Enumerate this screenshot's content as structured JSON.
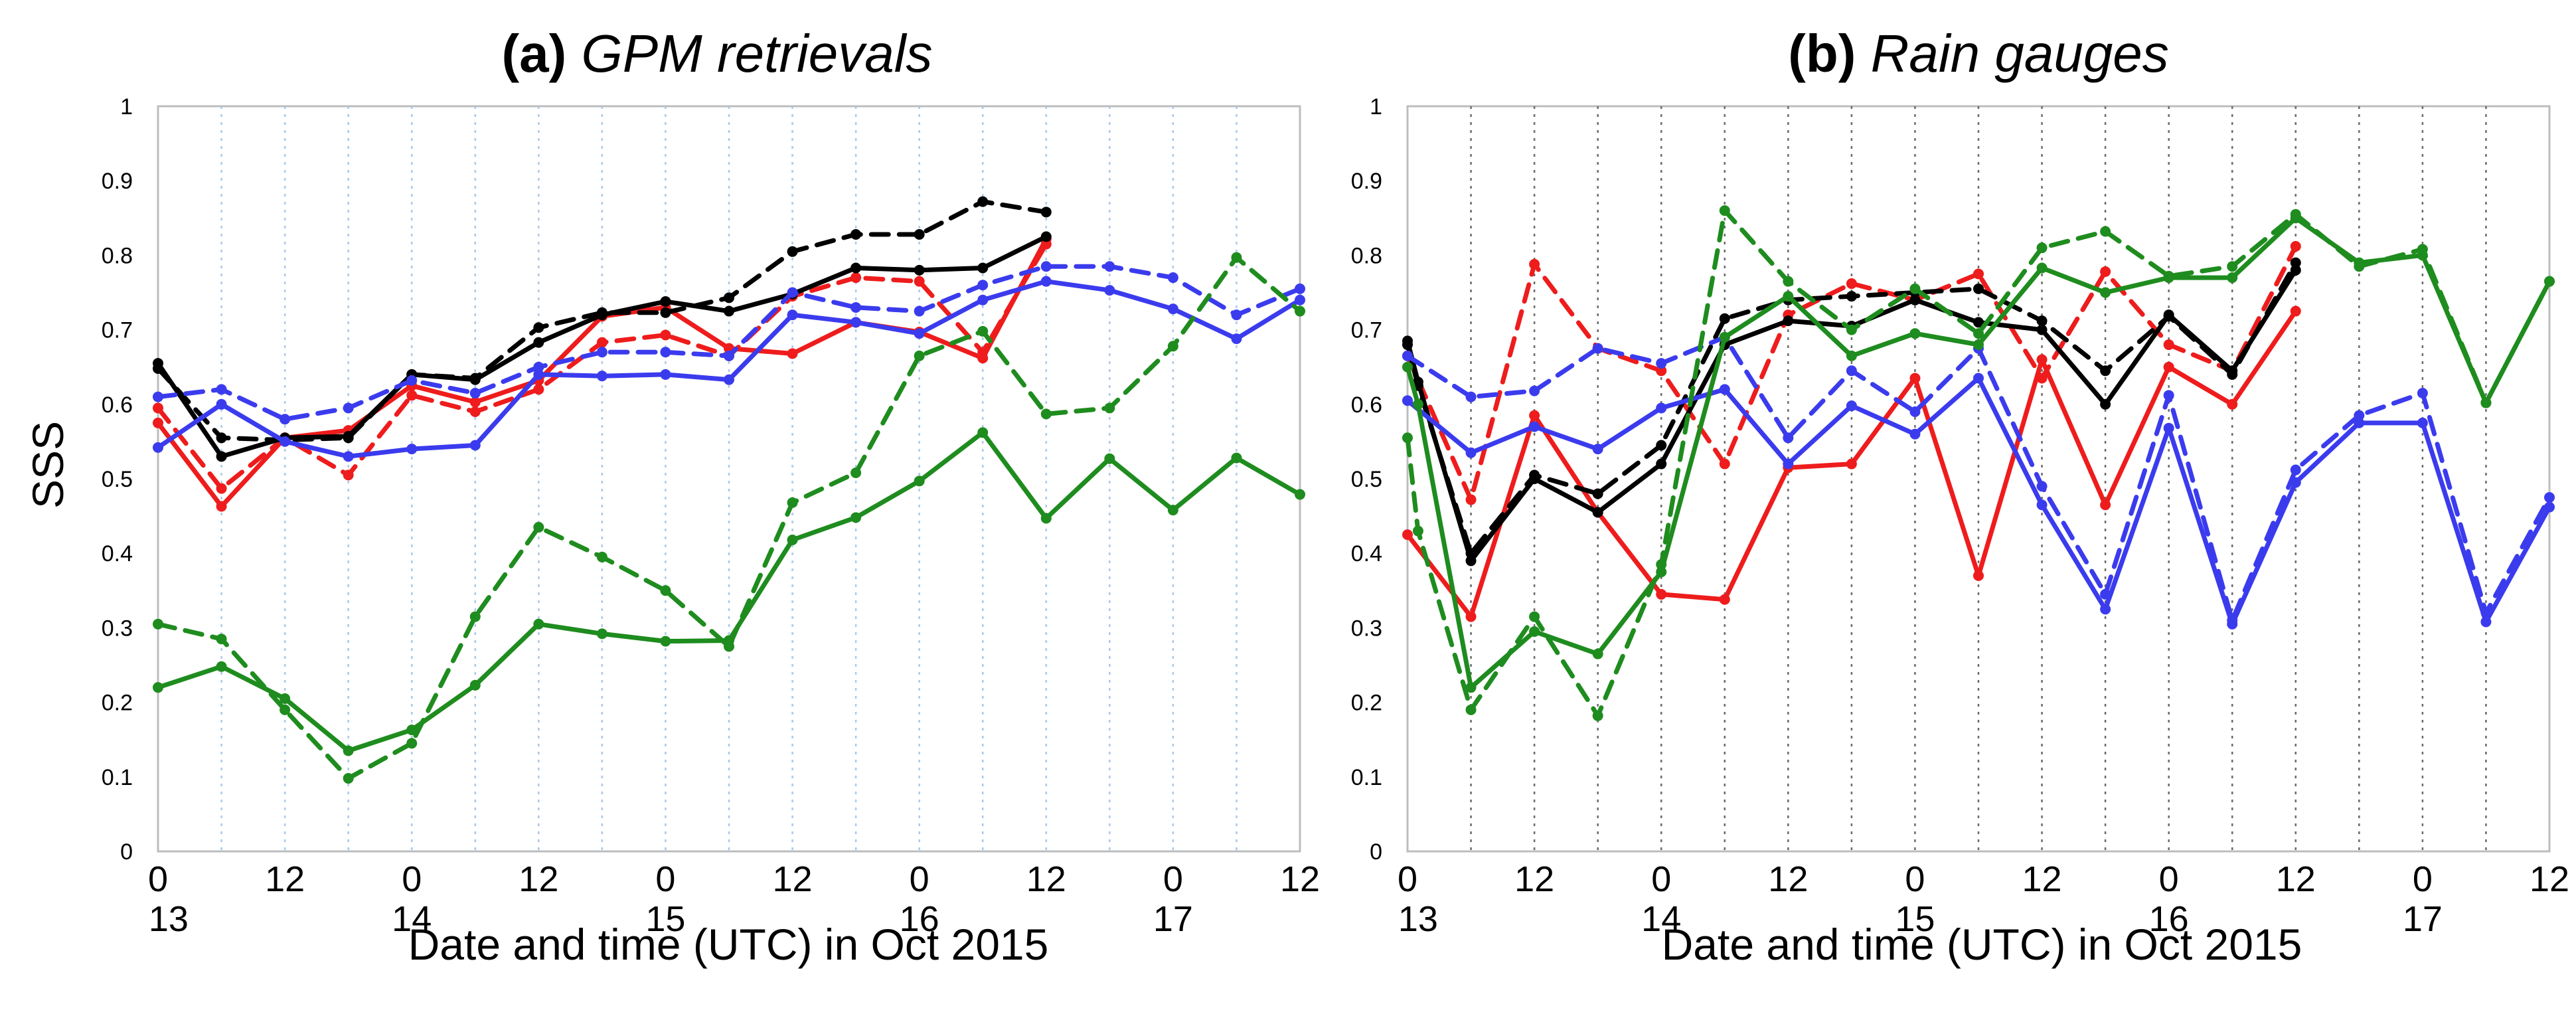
{
  "figure": {
    "ylabel": "SSS"
  },
  "chart_data": [
    {
      "type": "line",
      "title_prefix": "(a)",
      "title": "GPM retrievals",
      "xlabel": "Date and time (UTC) in Oct 2015",
      "ylabel": "SSS",
      "ylim": [
        0,
        1
      ],
      "yticks": [
        "0",
        "0.1",
        "0.2",
        "0.3",
        "0.4",
        "0.5",
        "0.6",
        "0.7",
        "0.8",
        "0.9",
        "1"
      ],
      "xlim": [
        0,
        108
      ],
      "xticks": [
        {
          "x": 0,
          "label": "0"
        },
        {
          "x": 12,
          "label": "12"
        },
        {
          "x": 24,
          "label": "0"
        },
        {
          "x": 36,
          "label": "12"
        },
        {
          "x": 48,
          "label": "0"
        },
        {
          "x": 60,
          "label": "12"
        },
        {
          "x": 72,
          "label": "0"
        },
        {
          "x": 84,
          "label": "12"
        },
        {
          "x": 96,
          "label": "0"
        },
        {
          "x": 108,
          "label": "12"
        }
      ],
      "date_labels": [
        {
          "x": 1,
          "label": "13"
        },
        {
          "x": 24,
          "label": "14"
        },
        {
          "x": 48,
          "label": "15"
        },
        {
          "x": 72,
          "label": "16"
        },
        {
          "x": 96,
          "label": "17"
        }
      ],
      "grid": "vertical dotted every 6 h",
      "series": [
        {
          "name": "red solid",
          "color": "#ee1c1c",
          "dash": "solid",
          "x": [
            0,
            6,
            12,
            18,
            24,
            30,
            36,
            42,
            48,
            54,
            60,
            66,
            72,
            78,
            84
          ],
          "y": [
            0.575,
            0.463,
            0.555,
            0.565,
            0.625,
            0.603,
            0.632,
            0.718,
            0.73,
            0.675,
            0.668,
            0.71,
            0.697,
            0.662,
            0.822
          ]
        },
        {
          "name": "red dashed",
          "color": "#ee1c1c",
          "dash": "dashed",
          "x": [
            0,
            6,
            12,
            18,
            24,
            30,
            36,
            42,
            48,
            54,
            60,
            66,
            72,
            78,
            84
          ],
          "y": [
            0.595,
            0.487,
            0.555,
            0.505,
            0.612,
            0.59,
            0.62,
            0.683,
            0.693,
            0.665,
            0.745,
            0.77,
            0.765,
            0.67,
            0.815
          ]
        },
        {
          "name": "black solid",
          "color": "#000000",
          "dash": "solid",
          "x": [
            0,
            6,
            12,
            18,
            24,
            30,
            36,
            42,
            48,
            54,
            60,
            66,
            72,
            78,
            84
          ],
          "y": [
            0.655,
            0.53,
            0.555,
            0.557,
            0.64,
            0.633,
            0.683,
            0.72,
            0.738,
            0.725,
            0.748,
            0.783,
            0.78,
            0.783,
            0.825
          ]
        },
        {
          "name": "black dashed",
          "color": "#000000",
          "dash": "dashed",
          "x": [
            0,
            6,
            12,
            18,
            24,
            30,
            36,
            42,
            48,
            54,
            60,
            66,
            72,
            78,
            84
          ],
          "y": [
            0.648,
            0.555,
            0.552,
            0.555,
            0.64,
            0.635,
            0.703,
            0.723,
            0.723,
            0.743,
            0.805,
            0.828,
            0.828,
            0.872,
            0.858
          ]
        },
        {
          "name": "blue solid",
          "color": "#3b3bee",
          "dash": "solid",
          "x": [
            0,
            6,
            12,
            18,
            24,
            30,
            36,
            42,
            48,
            54,
            60,
            66,
            72,
            78,
            84,
            90,
            96,
            102,
            108
          ],
          "y": [
            0.542,
            0.6,
            0.55,
            0.53,
            0.54,
            0.545,
            0.64,
            0.638,
            0.64,
            0.633,
            0.72,
            0.71,
            0.695,
            0.74,
            0.765,
            0.753,
            0.728,
            0.688,
            0.74
          ]
        },
        {
          "name": "blue dashed",
          "color": "#3b3bee",
          "dash": "dashed",
          "x": [
            0,
            6,
            12,
            18,
            24,
            30,
            36,
            42,
            48,
            54,
            60,
            66,
            72,
            78,
            84,
            90,
            96,
            102,
            108
          ],
          "y": [
            0.61,
            0.62,
            0.58,
            0.595,
            0.632,
            0.615,
            0.65,
            0.67,
            0.67,
            0.665,
            0.75,
            0.73,
            0.725,
            0.76,
            0.785,
            0.785,
            0.77,
            0.72,
            0.755
          ]
        },
        {
          "name": "green solid",
          "color": "#1e8c1e",
          "dash": "solid",
          "x": [
            0,
            6,
            12,
            18,
            24,
            30,
            36,
            42,
            48,
            54,
            60,
            66,
            72,
            78,
            84,
            90,
            96,
            102,
            108
          ],
          "y": [
            0.22,
            0.248,
            0.205,
            0.135,
            0.163,
            0.223,
            0.305,
            0.292,
            0.282,
            0.283,
            0.418,
            0.448,
            0.497,
            0.562,
            0.447,
            0.527,
            0.458,
            0.528,
            0.479
          ]
        },
        {
          "name": "green dashed",
          "color": "#1e8c1e",
          "dash": "dashed",
          "x": [
            0,
            6,
            12,
            18,
            24,
            30,
            36,
            42,
            48,
            54,
            60,
            66,
            72,
            78,
            84,
            90,
            96,
            102,
            108
          ],
          "y": [
            0.305,
            0.285,
            0.19,
            0.098,
            0.145,
            0.315,
            0.435,
            0.395,
            0.35,
            0.275,
            0.468,
            0.508,
            0.665,
            0.698,
            0.587,
            0.595,
            0.678,
            0.797,
            0.725
          ]
        }
      ]
    },
    {
      "type": "line",
      "title_prefix": "(b)",
      "title": "Rain gauges",
      "xlabel": "Date and time (UTC) in Oct 2015",
      "ylim": [
        0,
        1
      ],
      "yticks": [
        "0",
        "0.1",
        "0.2",
        "0.3",
        "0.4",
        "0.5",
        "0.6",
        "0.7",
        "0.8",
        "0.9",
        "1"
      ],
      "xlim": [
        0,
        108
      ],
      "xticks": [
        {
          "x": 0,
          "label": "0"
        },
        {
          "x": 12,
          "label": "12"
        },
        {
          "x": 24,
          "label": "0"
        },
        {
          "x": 36,
          "label": "12"
        },
        {
          "x": 48,
          "label": "0"
        },
        {
          "x": 60,
          "label": "12"
        },
        {
          "x": 72,
          "label": "0"
        },
        {
          "x": 84,
          "label": "12"
        },
        {
          "x": 96,
          "label": "0"
        },
        {
          "x": 108,
          "label": "12"
        }
      ],
      "date_labels": [
        {
          "x": 1,
          "label": "13"
        },
        {
          "x": 24,
          "label": "14"
        },
        {
          "x": 48,
          "label": "15"
        },
        {
          "x": 72,
          "label": "16"
        },
        {
          "x": 96,
          "label": "17"
        }
      ],
      "grid": "vertical dotted every 6 h",
      "series": [
        {
          "name": "red solid",
          "color": "#ee1c1c",
          "dash": "solid",
          "x": [
            0,
            6,
            12,
            18,
            24,
            30,
            36,
            42,
            48,
            54,
            60,
            66,
            72,
            78,
            84
          ],
          "y": [
            0.425,
            0.315,
            0.585,
            0.455,
            0.345,
            0.338,
            0.515,
            0.52,
            0.635,
            0.37,
            0.66,
            0.465,
            0.65,
            0.6,
            0.725
          ]
        },
        {
          "name": "red dashed",
          "color": "#ee1c1c",
          "dash": "dashed",
          "x": [
            0,
            6,
            12,
            18,
            24,
            30,
            36,
            42,
            48,
            54,
            60,
            66,
            72,
            78,
            84
          ],
          "y": [
            0.665,
            0.472,
            0.788,
            0.675,
            0.645,
            0.52,
            0.72,
            0.762,
            0.74,
            0.775,
            0.635,
            0.778,
            0.68,
            0.645,
            0.812
          ]
        },
        {
          "name": "black solid",
          "color": "#000000",
          "dash": "solid",
          "x": [
            0,
            1,
            6,
            12,
            18,
            24,
            30,
            36,
            42,
            48,
            54,
            60,
            66,
            72,
            78,
            84
          ],
          "y": [
            0.685,
            0.63,
            0.39,
            0.5,
            0.455,
            0.52,
            0.68,
            0.712,
            0.705,
            0.74,
            0.71,
            0.7,
            0.6,
            0.72,
            0.645,
            0.78
          ]
        },
        {
          "name": "black dashed",
          "color": "#000000",
          "dash": "dashed",
          "x": [
            0,
            1,
            6,
            12,
            18,
            24,
            30,
            36,
            42,
            48,
            54,
            60,
            66,
            72,
            78,
            84
          ],
          "y": [
            0.68,
            0.625,
            0.4,
            0.505,
            0.48,
            0.545,
            0.715,
            0.74,
            0.745,
            0.75,
            0.755,
            0.712,
            0.645,
            0.718,
            0.64,
            0.79
          ]
        },
        {
          "name": "blue solid",
          "color": "#3b3bee",
          "dash": "solid",
          "x": [
            0,
            6,
            12,
            18,
            24,
            30,
            36,
            42,
            48,
            54,
            60,
            66,
            72,
            78,
            84,
            90,
            96,
            102,
            108
          ],
          "y": [
            0.605,
            0.535,
            0.57,
            0.54,
            0.595,
            0.62,
            0.52,
            0.598,
            0.56,
            0.635,
            0.465,
            0.325,
            0.568,
            0.305,
            0.495,
            0.575,
            0.575,
            0.308,
            0.462
          ]
        },
        {
          "name": "blue dashed",
          "color": "#3b3bee",
          "dash": "dashed",
          "x": [
            0,
            6,
            12,
            18,
            24,
            30,
            36,
            42,
            48,
            54,
            60,
            66,
            72,
            78,
            84,
            90,
            96,
            102,
            108
          ],
          "y": [
            0.665,
            0.61,
            0.618,
            0.675,
            0.655,
            0.69,
            0.555,
            0.645,
            0.59,
            0.675,
            0.49,
            0.345,
            0.612,
            0.31,
            0.512,
            0.585,
            0.615,
            0.32,
            0.475
          ]
        },
        {
          "name": "green solid",
          "color": "#1e8c1e",
          "dash": "solid",
          "x": [
            0,
            1,
            6,
            12,
            18,
            24,
            30,
            36,
            42,
            48,
            54,
            60,
            66,
            72,
            78,
            84,
            90,
            96,
            102,
            108
          ],
          "y": [
            0.65,
            0.6,
            0.22,
            0.295,
            0.265,
            0.375,
            0.69,
            0.745,
            0.665,
            0.695,
            0.68,
            0.783,
            0.75,
            0.77,
            0.77,
            0.85,
            0.79,
            0.8,
            0.602,
            0.765
          ]
        },
        {
          "name": "green dashed",
          "color": "#1e8c1e",
          "dash": "dashed",
          "x": [
            0,
            1,
            6,
            12,
            18,
            24,
            30,
            36,
            42,
            48,
            54,
            60,
            66,
            72,
            78,
            84,
            90,
            96,
            102,
            108
          ],
          "y": [
            0.555,
            0.43,
            0.19,
            0.315,
            0.182,
            0.385,
            0.86,
            0.765,
            0.7,
            0.755,
            0.695,
            0.81,
            0.832,
            0.772,
            0.785,
            0.855,
            0.785,
            0.808,
            0.602,
            0.765
          ]
        }
      ]
    }
  ]
}
